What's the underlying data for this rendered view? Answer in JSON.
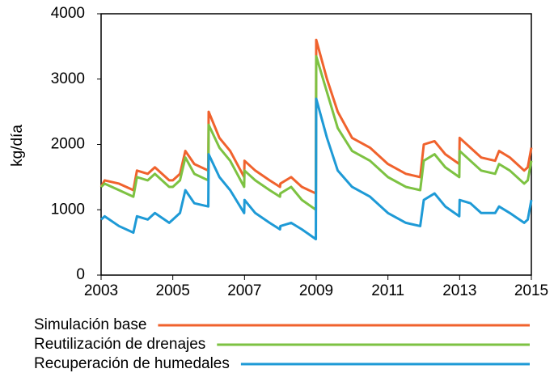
{
  "chart_data": {
    "type": "line",
    "y_label": "kg/día",
    "x": [
      2003.0,
      2003.1,
      2003.5,
      2003.9,
      2004.0,
      2004.3,
      2004.5,
      2004.9,
      2005.0,
      2005.2,
      2005.35,
      2005.6,
      2005.99,
      2006.0,
      2006.3,
      2006.6,
      2006.99,
      2007.0,
      2007.3,
      2007.7,
      2007.99,
      2008.0,
      2008.3,
      2008.6,
      2008.99,
      2009.0,
      2009.3,
      2009.6,
      2010.0,
      2010.5,
      2011.0,
      2011.5,
      2011.9,
      2012.0,
      2012.3,
      2012.6,
      2012.99,
      2013.0,
      2013.3,
      2013.6,
      2013.99,
      2014.1,
      2014.4,
      2014.8,
      2014.9,
      2015.0
    ],
    "series": [
      {
        "name": "Simulación base",
        "color": "#f0622d",
        "values": [
          1350,
          1450,
          1400,
          1300,
          1600,
          1550,
          1650,
          1450,
          1450,
          1550,
          1900,
          1700,
          1600,
          2500,
          2100,
          1900,
          1500,
          1750,
          1600,
          1450,
          1350,
          1400,
          1500,
          1350,
          1250,
          3600,
          3000,
          2500,
          2100,
          1950,
          1700,
          1550,
          1500,
          2000,
          2050,
          1850,
          1700,
          2100,
          1950,
          1800,
          1750,
          1900,
          1800,
          1600,
          1650,
          1950
        ]
      },
      {
        "name": "Reutilización de drenajes",
        "color": "#7dc242",
        "values": [
          1350,
          1400,
          1300,
          1200,
          1500,
          1450,
          1550,
          1350,
          1350,
          1450,
          1800,
          1550,
          1450,
          2300,
          1950,
          1750,
          1350,
          1600,
          1450,
          1300,
          1200,
          1250,
          1350,
          1150,
          1000,
          3350,
          2800,
          2250,
          1900,
          1750,
          1500,
          1350,
          1300,
          1750,
          1850,
          1650,
          1500,
          1900,
          1750,
          1600,
          1550,
          1700,
          1600,
          1400,
          1450,
          1750
        ]
      },
      {
        "name": "Recuperación de humedales",
        "color": "#1e9ad6",
        "values": [
          850,
          900,
          750,
          650,
          900,
          850,
          950,
          800,
          850,
          950,
          1300,
          1100,
          1050,
          1850,
          1500,
          1300,
          950,
          1150,
          950,
          800,
          700,
          750,
          800,
          700,
          550,
          2700,
          2100,
          1600,
          1350,
          1200,
          950,
          800,
          750,
          1150,
          1250,
          1050,
          900,
          1150,
          1100,
          950,
          950,
          1050,
          950,
          800,
          850,
          1150
        ]
      }
    ],
    "xlim": [
      2003,
      2015
    ],
    "xticks": [
      2003,
      2005,
      2007,
      2009,
      2011,
      2013,
      2015
    ],
    "ylim": [
      0,
      4000
    ],
    "yticks": [
      0,
      1000,
      2000,
      3000,
      4000
    ],
    "legend": "bottom"
  }
}
